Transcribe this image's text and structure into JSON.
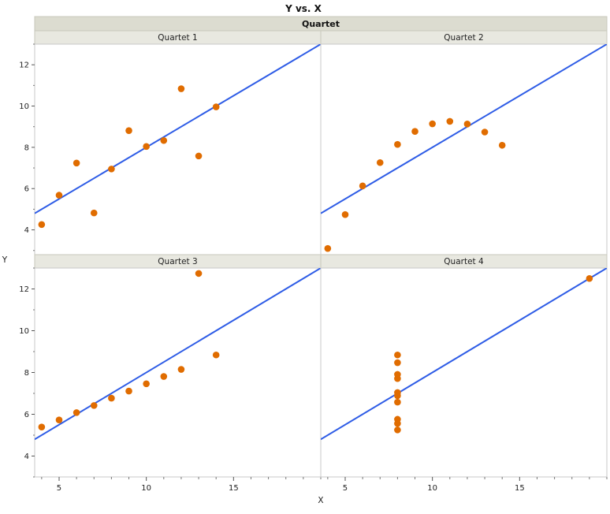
{
  "chart_data": {
    "type": "scatter",
    "title": "Y vs. X",
    "group_label": "Quartet",
    "xlabel": "X",
    "ylabel": "Y",
    "xlim": [
      3.6,
      20
    ],
    "x_ticks": [
      5,
      10,
      15
    ],
    "y_ticks": [
      4,
      6,
      8,
      10,
      12
    ],
    "top_row_ylim": [
      2.8,
      13.0
    ],
    "bottom_row_ylim": [
      3.0,
      13.0
    ],
    "marker_color": "#e06c00",
    "fit_line_color": "#2e5ce6",
    "fit_line": {
      "intercept": 3.0,
      "slope": 0.5
    },
    "panels": [
      {
        "label": "Quartet 1",
        "points": [
          [
            10,
            8.04
          ],
          [
            8,
            6.95
          ],
          [
            13,
            7.58
          ],
          [
            9,
            8.81
          ],
          [
            11,
            8.33
          ],
          [
            14,
            9.96
          ],
          [
            6,
            7.24
          ],
          [
            4,
            4.26
          ],
          [
            12,
            10.84
          ],
          [
            7,
            4.82
          ],
          [
            5,
            5.68
          ]
        ]
      },
      {
        "label": "Quartet 2",
        "points": [
          [
            10,
            9.14
          ],
          [
            8,
            8.14
          ],
          [
            13,
            8.74
          ],
          [
            9,
            8.77
          ],
          [
            11,
            9.26
          ],
          [
            14,
            8.1
          ],
          [
            6,
            6.13
          ],
          [
            4,
            3.1
          ],
          [
            12,
            9.13
          ],
          [
            7,
            7.26
          ],
          [
            5,
            4.74
          ]
        ]
      },
      {
        "label": "Quartet 3",
        "points": [
          [
            10,
            7.46
          ],
          [
            8,
            6.77
          ],
          [
            13,
            12.74
          ],
          [
            9,
            7.11
          ],
          [
            11,
            7.81
          ],
          [
            14,
            8.84
          ],
          [
            6,
            6.08
          ],
          [
            4,
            5.39
          ],
          [
            12,
            8.15
          ],
          [
            7,
            6.42
          ],
          [
            5,
            5.73
          ]
        ]
      },
      {
        "label": "Quartet 4",
        "points": [
          [
            8,
            6.58
          ],
          [
            8,
            5.76
          ],
          [
            8,
            7.71
          ],
          [
            8,
            8.84
          ],
          [
            8,
            8.47
          ],
          [
            8,
            7.04
          ],
          [
            8,
            5.25
          ],
          [
            19,
            12.5
          ],
          [
            8,
            5.56
          ],
          [
            8,
            7.91
          ],
          [
            8,
            6.89
          ]
        ]
      }
    ]
  }
}
